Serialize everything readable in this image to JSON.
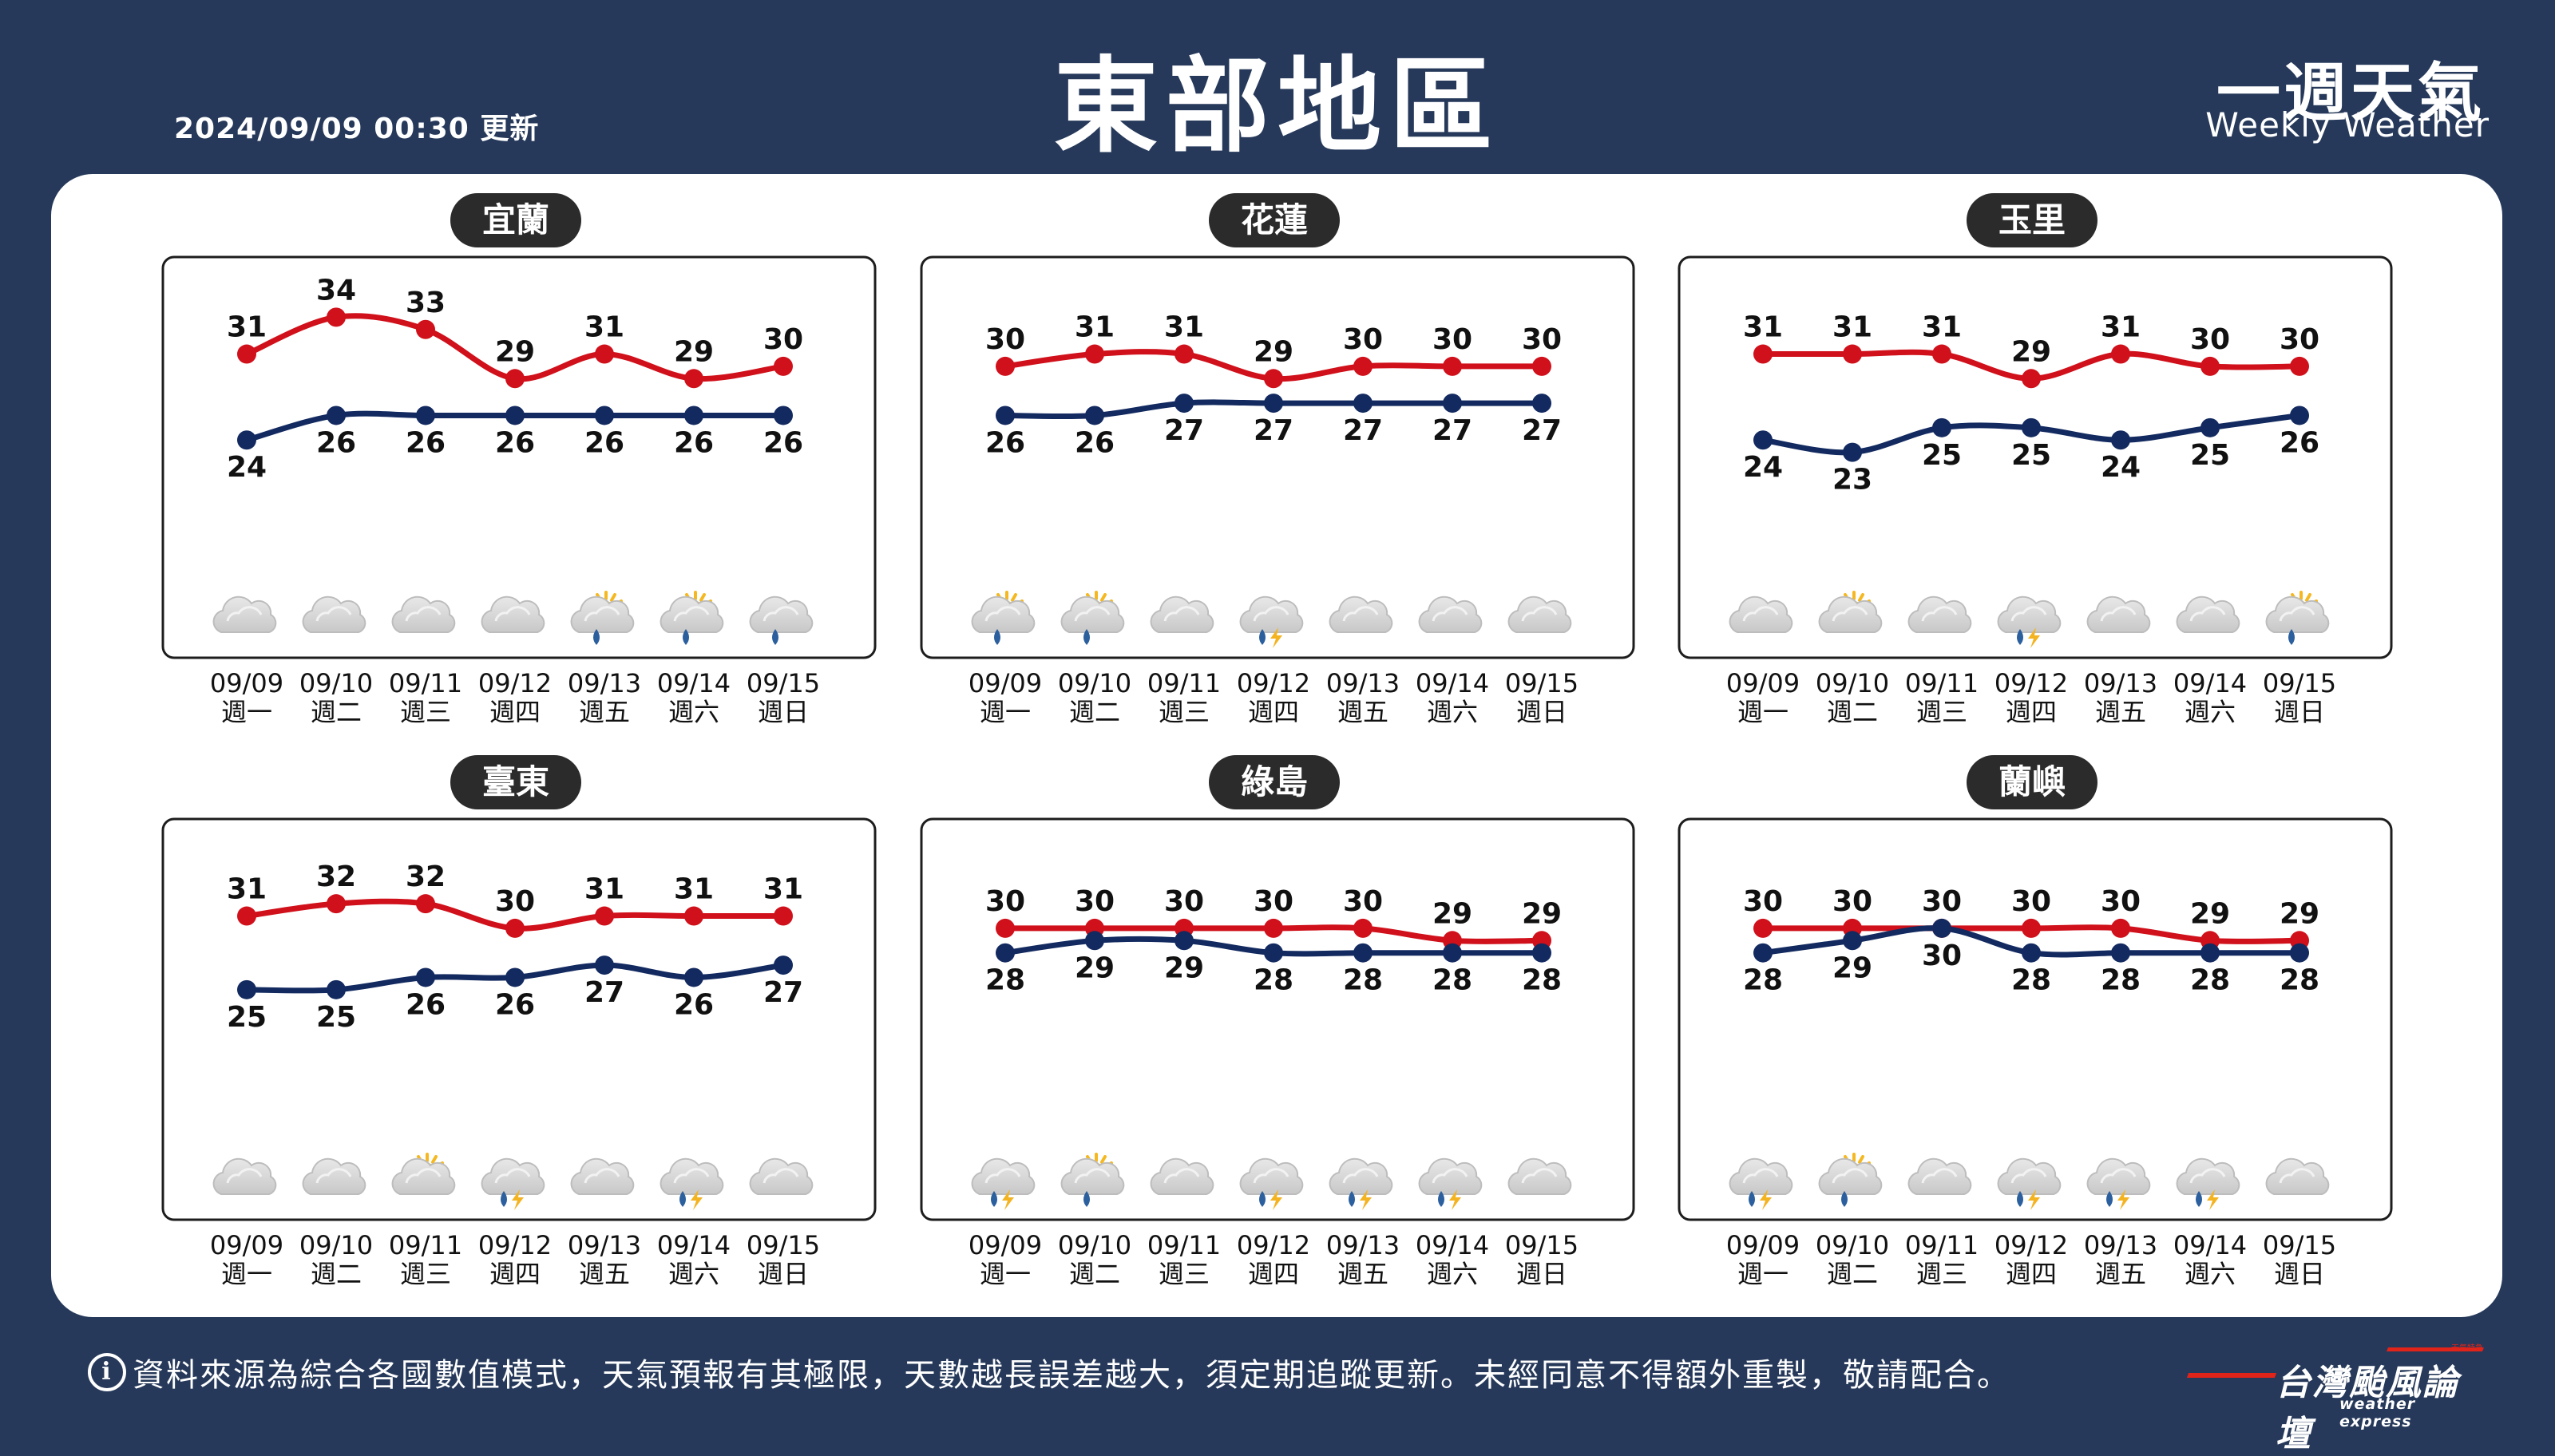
{
  "header": {
    "update_time": "2024/09/09 00:30 更新",
    "title": "東部地區",
    "brand_zh": "一週天氣",
    "brand_en": "Weekly Weather"
  },
  "footer": {
    "info_icon": "i",
    "text": "資料來源為綜合各國數值模式，天氣預報有其極限，天數越長誤差越大，須定期追蹤更新。未經同意不得額外重製，敬請配合。"
  },
  "logo": {
    "main": "台灣颱風論壇",
    "sub": "weather express",
    "small": "天氣特急"
  },
  "colors": {
    "background": "#26395a",
    "high_line": "#d0101a",
    "low_line": "#132a60",
    "label_pill": "#2b2b2b",
    "icon_sun": "#f5b820",
    "icon_cloud": "#d7d7d7",
    "icon_rain": "#2b5f9e",
    "icon_bolt": "#f4b320"
  },
  "chart_data": [
    {
      "type": "line",
      "title": "宜蘭",
      "x": [
        "09/09",
        "09/10",
        "09/11",
        "09/12",
        "09/13",
        "09/14",
        "09/15"
      ],
      "weekdays": [
        "週一",
        "週二",
        "週三",
        "週四",
        "週五",
        "週六",
        "週日"
      ],
      "series": [
        {
          "values": [
            31,
            34,
            33,
            29,
            31,
            29,
            30
          ]
        },
        {
          "values": [
            24,
            26,
            26,
            26,
            26,
            26,
            26
          ]
        }
      ],
      "weather_icons": [
        "cloudy-icon",
        "cloudy-icon",
        "cloudy-icon",
        "cloudy-icon",
        "sun-cloud-rain-icon",
        "sun-cloud-rain-icon",
        "cloud-rain-icon"
      ]
    },
    {
      "type": "line",
      "title": "花蓮",
      "x": [
        "09/09",
        "09/10",
        "09/11",
        "09/12",
        "09/13",
        "09/14",
        "09/15"
      ],
      "weekdays": [
        "週一",
        "週二",
        "週三",
        "週四",
        "週五",
        "週六",
        "週日"
      ],
      "series": [
        {
          "values": [
            30,
            31,
            31,
            29,
            30,
            30,
            30
          ]
        },
        {
          "values": [
            26,
            26,
            27,
            27,
            27,
            27,
            27
          ]
        }
      ],
      "weather_icons": [
        "sun-cloud-rain-icon",
        "sun-cloud-rain-icon",
        "cloudy-icon",
        "thunderstorm-icon",
        "cloudy-icon",
        "cloudy-icon",
        "cloudy-icon"
      ]
    },
    {
      "type": "line",
      "title": "玉里",
      "x": [
        "09/09",
        "09/10",
        "09/11",
        "09/12",
        "09/13",
        "09/14",
        "09/15"
      ],
      "weekdays": [
        "週一",
        "週二",
        "週三",
        "週四",
        "週五",
        "週六",
        "週日"
      ],
      "series": [
        {
          "values": [
            31,
            31,
            31,
            29,
            31,
            30,
            30
          ]
        },
        {
          "values": [
            24,
            23,
            25,
            25,
            24,
            25,
            26
          ]
        }
      ],
      "weather_icons": [
        "cloudy-icon",
        "partly-cloudy-icon",
        "cloudy-icon",
        "thunderstorm-icon",
        "cloudy-icon",
        "cloudy-icon",
        "sun-cloud-rain-icon"
      ]
    },
    {
      "type": "line",
      "title": "臺東",
      "x": [
        "09/09",
        "09/10",
        "09/11",
        "09/12",
        "09/13",
        "09/14",
        "09/15"
      ],
      "weekdays": [
        "週一",
        "週二",
        "週三",
        "週四",
        "週五",
        "週六",
        "週日"
      ],
      "series": [
        {
          "values": [
            31,
            32,
            32,
            30,
            31,
            31,
            31
          ]
        },
        {
          "values": [
            25,
            25,
            26,
            26,
            27,
            26,
            27
          ]
        }
      ],
      "weather_icons": [
        "cloudy-icon",
        "cloudy-icon",
        "partly-cloudy-icon",
        "thunderstorm-icon",
        "cloudy-icon",
        "thunderstorm-icon",
        "cloudy-icon"
      ]
    },
    {
      "type": "line",
      "title": "綠島",
      "x": [
        "09/09",
        "09/10",
        "09/11",
        "09/12",
        "09/13",
        "09/14",
        "09/15"
      ],
      "weekdays": [
        "週一",
        "週二",
        "週三",
        "週四",
        "週五",
        "週六",
        "週日"
      ],
      "series": [
        {
          "values": [
            30,
            30,
            30,
            30,
            30,
            29,
            29
          ]
        },
        {
          "values": [
            28,
            29,
            29,
            28,
            28,
            28,
            28
          ]
        }
      ],
      "weather_icons": [
        "thunderstorm-icon",
        "sun-cloud-rain-icon",
        "cloudy-icon",
        "thunderstorm-icon",
        "thunderstorm-icon",
        "thunderstorm-icon",
        "cloudy-icon"
      ]
    },
    {
      "type": "line",
      "title": "蘭嶼",
      "x": [
        "09/09",
        "09/10",
        "09/11",
        "09/12",
        "09/13",
        "09/14",
        "09/15"
      ],
      "weekdays": [
        "週一",
        "週二",
        "週三",
        "週四",
        "週五",
        "週六",
        "週日"
      ],
      "series": [
        {
          "values": [
            30,
            30,
            30,
            30,
            30,
            29,
            29
          ]
        },
        {
          "values": [
            28,
            29,
            30,
            28,
            28,
            28,
            28
          ]
        }
      ],
      "weather_icons": [
        "thunderstorm-icon",
        "sun-cloud-rain-icon",
        "cloudy-icon",
        "thunderstorm-icon",
        "thunderstorm-icon",
        "thunderstorm-icon",
        "cloudy-icon"
      ]
    }
  ]
}
